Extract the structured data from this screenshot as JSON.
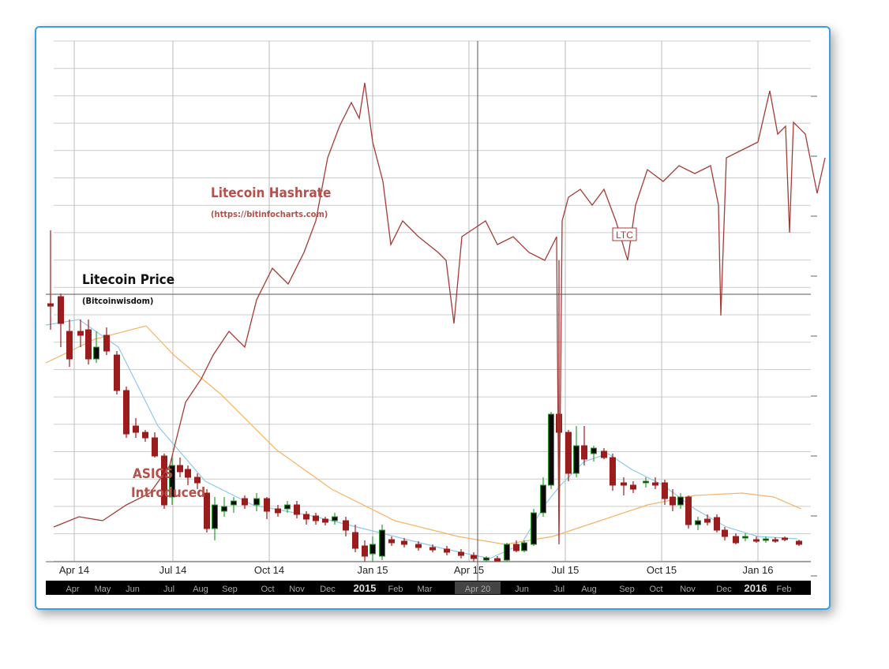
{
  "chart_data": {
    "type": "candlestick",
    "xlim": [
      0,
      969
    ],
    "ylim": [
      0,
      660
    ],
    "y2lim": [
      0,
      660
    ],
    "xticks": [
      {
        "value": 36,
        "label": "Apr 14"
      },
      {
        "value": 161,
        "label": "Jul 14"
      },
      {
        "value": 283,
        "label": "Oct 14"
      },
      {
        "value": 414,
        "label": "Jan 15"
      },
      {
        "value": 536,
        "label": "Apr 15"
      },
      {
        "value": 658,
        "label": "Jul 15"
      },
      {
        "value": 780,
        "label": "Oct 15"
      },
      {
        "value": 902,
        "label": "Jan 16"
      }
    ],
    "xticks_minor": [
      {
        "value": 34,
        "label": "Apr"
      },
      {
        "value": 72,
        "label": "May"
      },
      {
        "value": 110,
        "label": "Jun"
      },
      {
        "value": 156,
        "label": "Jul"
      },
      {
        "value": 196,
        "label": "Aug"
      },
      {
        "value": 233,
        "label": "Sep"
      },
      {
        "value": 281,
        "label": "Oct"
      },
      {
        "value": 318,
        "label": "Nov"
      },
      {
        "value": 357,
        "label": "Dec"
      },
      {
        "value": 404,
        "label": "2015"
      },
      {
        "value": 443,
        "label": "Feb"
      },
      {
        "value": 480,
        "label": "Mar"
      },
      {
        "value": 547,
        "label": "Apr 20"
      },
      {
        "value": 603,
        "label": "Jun"
      },
      {
        "value": 650,
        "label": "Jul"
      },
      {
        "value": 688,
        "label": "Aug"
      },
      {
        "value": 736,
        "label": "Sep"
      },
      {
        "value": 773,
        "label": "Oct"
      },
      {
        "value": 813,
        "label": "Nov"
      },
      {
        "value": 859,
        "label": "Dec"
      },
      {
        "value": 899,
        "label": "2016"
      },
      {
        "value": 935,
        "label": "Feb"
      }
    ],
    "grid": true,
    "annotations": [
      "Litecoin Hashrate",
      "(https://bitinfocharts.com)",
      "Litecoin Price",
      "(Bitcoinwisdom)",
      "ASICS",
      "Introduced",
      "LTC"
    ],
    "candles": {
      "up_color": "#0a0a0a",
      "up_edge": "#2e9a2e",
      "down_color": "#9b1c1c",
      "x": [
        6,
        19,
        30,
        44,
        54,
        64,
        77,
        90,
        102,
        114,
        126,
        138,
        150,
        160,
        170,
        180,
        192,
        204,
        214,
        226,
        238,
        252,
        267,
        280,
        294,
        306,
        318,
        330,
        342,
        354,
        366,
        380,
        392,
        404,
        414,
        426,
        438,
        454,
        472,
        490,
        508,
        526,
        542,
        558,
        572,
        584,
        596,
        606,
        618,
        630,
        640,
        650,
        662,
        672,
        682,
        694,
        707,
        718,
        732,
        744,
        760,
        772,
        784,
        794,
        804,
        814,
        826,
        838,
        850,
        860,
        874,
        886,
        900,
        912,
        924,
        936,
        954
      ],
      "open": [
        327,
        336,
        292,
        292,
        294,
        257,
        287,
        262,
        217,
        172,
        164,
        157,
        134,
        82,
        122,
        117,
        107,
        87,
        42,
        64,
        72,
        80,
        72,
        80,
        67,
        67,
        72,
        60,
        58,
        54,
        52,
        52,
        37,
        20,
        10,
        7,
        28,
        26,
        22,
        18,
        16,
        12,
        8,
        2,
        4,
        2,
        22,
        14,
        22,
        62,
        97,
        187,
        164,
        112,
        147,
        137,
        140,
        132,
        100,
        97,
        100,
        100,
        100,
        82,
        72,
        82,
        47,
        54,
        56,
        40,
        32,
        30,
        28,
        27,
        28,
        30,
        26
      ],
      "close": [
        324,
        302,
        257,
        287,
        257,
        272,
        267,
        217,
        162,
        164,
        157,
        134,
        72,
        122,
        114,
        107,
        100,
        42,
        72,
        70,
        77,
        72,
        80,
        64,
        62,
        72,
        60,
        54,
        52,
        50,
        57,
        40,
        17,
        7,
        22,
        40,
        24,
        22,
        18,
        15,
        12,
        8,
        4,
        5,
        0,
        22,
        14,
        24,
        62,
        97,
        187,
        164,
        112,
        147,
        130,
        144,
        132,
        97,
        97,
        92,
        102,
        97,
        80,
        72,
        82,
        47,
        52,
        50,
        40,
        32,
        24,
        32,
        26,
        29,
        26,
        28,
        22
      ],
      "high": [
        420,
        340,
        307,
        307,
        307,
        292,
        297,
        267,
        222,
        182,
        167,
        164,
        137,
        132,
        132,
        122,
        112,
        92,
        82,
        82,
        82,
        84,
        87,
        82,
        72,
        77,
        77,
        64,
        62,
        57,
        62,
        57,
        47,
        27,
        32,
        47,
        32,
        30,
        26,
        22,
        20,
        16,
        12,
        7,
        7,
        24,
        27,
        27,
        67,
        107,
        190,
        382,
        167,
        172,
        172,
        147,
        144,
        137,
        107,
        102,
        107,
        107,
        104,
        92,
        87,
        84,
        57,
        60,
        60,
        44,
        36,
        36,
        32,
        32,
        31,
        32,
        28
      ],
      "low": [
        294,
        272,
        247,
        272,
        250,
        252,
        262,
        212,
        157,
        157,
        152,
        132,
        67,
        72,
        107,
        97,
        92,
        37,
        27,
        57,
        62,
        67,
        64,
        54,
        57,
        62,
        55,
        47,
        47,
        46,
        47,
        32,
        12,
        0,
        0,
        2,
        20,
        18,
        14,
        12,
        8,
        4,
        0,
        0,
        0,
        0,
        12,
        12,
        20,
        57,
        92,
        92,
        102,
        107,
        122,
        127,
        130,
        90,
        84,
        87,
        94,
        92,
        72,
        64,
        67,
        42,
        40,
        46,
        37,
        27,
        22,
        26,
        24,
        24,
        24,
        26,
        20
      ]
    },
    "lines": [
      {
        "axis": "y2",
        "color": "#a53b36",
        "x": [
          10,
          42,
          72,
          102,
          132,
          157,
          177,
          197,
          212,
          232,
          252,
          267,
          287,
          307,
          327,
          342,
          357,
          372,
          387,
          397,
          404,
          414,
          427,
          437,
          452,
          472,
          497,
          507,
          517,
          527,
          542,
          557,
          572,
          592,
          612,
          632,
          647,
          650,
          654,
          662,
          677,
          692,
          707,
          722,
          737,
          747,
          762,
          782,
          802,
          822,
          842,
          852,
          855,
          862,
          882,
          902,
          917,
          927,
          937,
          942,
          947,
          962,
          977,
          987
        ],
        "values": [
          44,
          57,
          52,
          72,
          87,
          122,
          202,
          232,
          262,
          292,
          272,
          332,
          372,
          352,
          392,
          432,
          512,
          552,
          582,
          562,
          607,
          532,
          482,
          402,
          432,
          412,
          392,
          382,
          302,
          412,
          422,
          432,
          402,
          412,
          392,
          382,
          412,
          22,
          432,
          462,
          472,
          452,
          472,
          432,
          382,
          452,
          497,
          482,
          502,
          492,
          502,
          452,
          312,
          512,
          522,
          532,
          597,
          542,
          552,
          417,
          557,
          542,
          467,
          512
        ]
      },
      {
        "color": "#8ec9ea",
        "x": [
          0,
          42,
          92,
          142,
          202,
          262,
          342,
          422,
          502,
          562,
          602,
          632,
          652,
          682,
          712,
          742,
          782,
          822,
          862,
          902,
          952
        ],
        "values": [
          300,
          307,
          272,
          172,
          102,
          72,
          57,
          37,
          17,
          4,
          22,
          72,
          97,
          127,
          137,
          117,
          97,
          67,
          44,
          32,
          29
        ]
      },
      {
        "color": "#f7b263",
        "x": [
          0,
          62,
          127,
          162,
          222,
          292,
          362,
          442,
          522,
          582,
          642,
          702,
          762,
          822,
          882,
          922,
          957
        ],
        "values": [
          252,
          282,
          299,
          262,
          212,
          142,
          92,
          52,
          32,
          22,
          32,
          52,
          72,
          84,
          87,
          82,
          67
        ]
      }
    ]
  }
}
